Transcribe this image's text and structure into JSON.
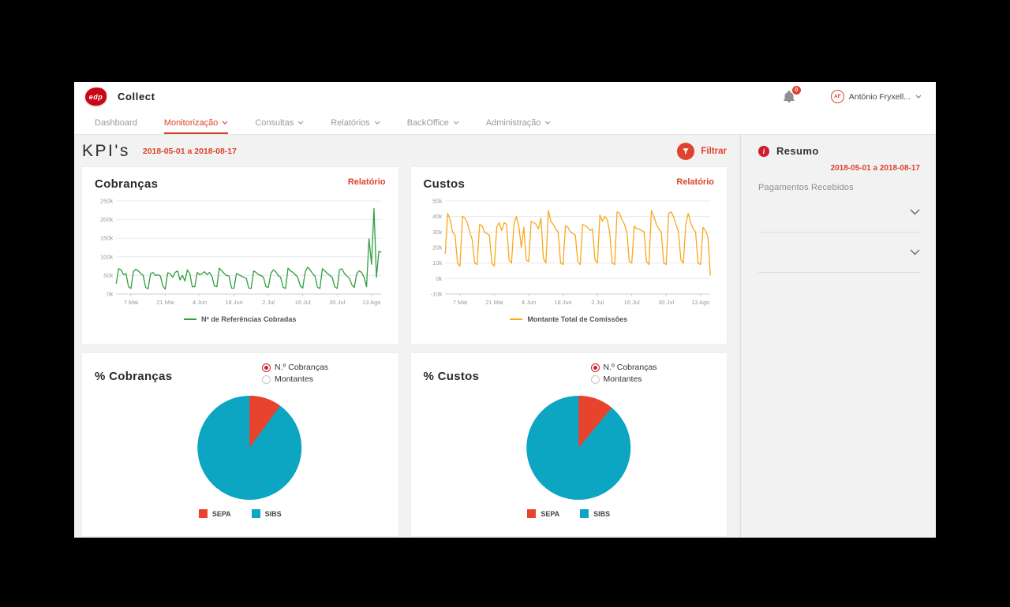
{
  "app": {
    "brand": "edp",
    "title": "Collect",
    "notification_count": "0",
    "user": {
      "initials": "AF",
      "name": "António Fryxell..."
    }
  },
  "nav": {
    "items": [
      {
        "label": "Dashboard",
        "active": false,
        "dropdown": false
      },
      {
        "label": "Monitorização",
        "active": true,
        "dropdown": true
      },
      {
        "label": "Consultas",
        "active": false,
        "dropdown": true
      },
      {
        "label": "Relatórios",
        "active": false,
        "dropdown": true
      },
      {
        "label": "BackOffice",
        "active": false,
        "dropdown": true
      },
      {
        "label": "Administração",
        "active": false,
        "dropdown": true
      }
    ]
  },
  "page": {
    "title": "KPI's",
    "date_range": "2018-05-01 a 2018-08-17",
    "filter_label": "Filtrar"
  },
  "sidebar": {
    "title": "Resumo",
    "date_range": "2018-05-01 a 2018-08-17",
    "subtitle": "Pagamentos Recebidos"
  },
  "colors": {
    "accent_red": "#e0432d",
    "line_green": "#2f9e3e",
    "line_orange": "#f8a81d",
    "pie_red": "#e8432d",
    "pie_teal": "#0da6c2"
  },
  "chart_data": [
    {
      "type": "line",
      "title": "Cobranças",
      "link_label": "Relatório",
      "legend": "Nº de Referências Cobradas",
      "color": "#2f9e3e",
      "ylabel": "",
      "xlabel": "",
      "ylim": [
        0,
        250
      ],
      "unit": "thousands",
      "y_gridlines": [
        0,
        50,
        100,
        150,
        200,
        250
      ],
      "y_tick_labels": [
        "0k",
        "50k",
        "100k",
        "150k",
        "200k",
        "250k"
      ],
      "x_ticks": [
        "7 Mai",
        "21 Mai",
        "4 Jun",
        "18 Jun",
        "2 Jul",
        "16 Jul",
        "30 Jul",
        "13 Ago"
      ],
      "x_tick_idx": [
        6,
        20,
        34,
        48,
        62,
        76,
        90,
        104
      ],
      "x_range": "2018-05-01 a 2018-08-17",
      "values": [
        28,
        68,
        65,
        52,
        55,
        20,
        15,
        60,
        67,
        62,
        55,
        50,
        18,
        14,
        55,
        58,
        50,
        52,
        48,
        22,
        13,
        57,
        55,
        45,
        58,
        62,
        38,
        50,
        35,
        65,
        55,
        20,
        20,
        58,
        52,
        55,
        60,
        52,
        58,
        48,
        22,
        20,
        70,
        62,
        55,
        50,
        48,
        16,
        15,
        55,
        52,
        48,
        45,
        42,
        16,
        15,
        62,
        58,
        52,
        50,
        45,
        20,
        18,
        55,
        65,
        60,
        50,
        45,
        18,
        15,
        70,
        62,
        58,
        52,
        45,
        22,
        16,
        60,
        72,
        65,
        55,
        48,
        18,
        15,
        68,
        62,
        55,
        50,
        45,
        20,
        15,
        65,
        68,
        55,
        48,
        42,
        25,
        18,
        55,
        62,
        58,
        45,
        20,
        148,
        80,
        230,
        45,
        115,
        112
      ]
    },
    {
      "type": "line",
      "title": "Custos",
      "link_label": "Relatório",
      "legend": "Montante Total de Comissões",
      "color": "#f8a81d",
      "ylabel": "",
      "xlabel": "",
      "ylim": [
        -10,
        50
      ],
      "unit": "thousands",
      "y_gridlines": [
        -10,
        0,
        10,
        20,
        30,
        40,
        50
      ],
      "y_tick_labels": [
        "-10k",
        "0k",
        "10k",
        "20k",
        "30k",
        "40k",
        "50k"
      ],
      "x_ticks": [
        "7 Mai",
        "21 Mai",
        "4 Jun",
        "18 Jun",
        "2 Jul",
        "16 Jul",
        "30 Jul",
        "13 Ago"
      ],
      "x_tick_idx": [
        6,
        20,
        34,
        48,
        62,
        76,
        90,
        104
      ],
      "x_range": "2018-05-01 a 2018-08-17",
      "values": [
        16,
        42,
        38,
        30,
        28,
        10,
        8,
        40,
        39,
        36,
        30,
        25,
        10,
        9,
        35,
        34,
        30,
        29,
        28,
        10,
        8,
        33,
        36,
        31,
        36,
        35,
        12,
        10,
        35,
        40,
        34,
        20,
        33,
        12,
        11,
        37,
        36,
        35,
        32,
        39,
        13,
        10,
        44,
        37,
        35,
        32,
        30,
        10,
        9,
        34,
        33,
        30,
        29,
        28,
        11,
        9,
        35,
        34,
        33,
        31,
        32,
        12,
        10,
        41,
        37,
        40,
        38,
        30,
        10,
        9,
        43,
        42,
        38,
        35,
        30,
        11,
        10,
        34,
        32,
        32,
        31,
        30,
        11,
        9,
        44,
        40,
        35,
        32,
        30,
        10,
        9,
        42,
        43,
        40,
        35,
        30,
        12,
        10,
        35,
        42,
        36,
        32,
        30,
        10,
        9,
        33,
        31,
        27,
        2
      ]
    },
    {
      "type": "pie",
      "title": "% Cobranças",
      "radio_options": [
        "N.º Cobranças",
        "Montantes"
      ],
      "selected_radio": 0,
      "labels": [
        "SEPA",
        "SIBS"
      ],
      "values": [
        10,
        90
      ],
      "colors": [
        "#e8432d",
        "#0da6c2"
      ]
    },
    {
      "type": "pie",
      "title": "% Custos",
      "radio_options": [
        "N.º Cobranças",
        "Montantes"
      ],
      "selected_radio": 0,
      "labels": [
        "SEPA",
        "SIBS"
      ],
      "values": [
        11,
        89
      ],
      "colors": [
        "#e8432d",
        "#0da6c2"
      ]
    }
  ]
}
